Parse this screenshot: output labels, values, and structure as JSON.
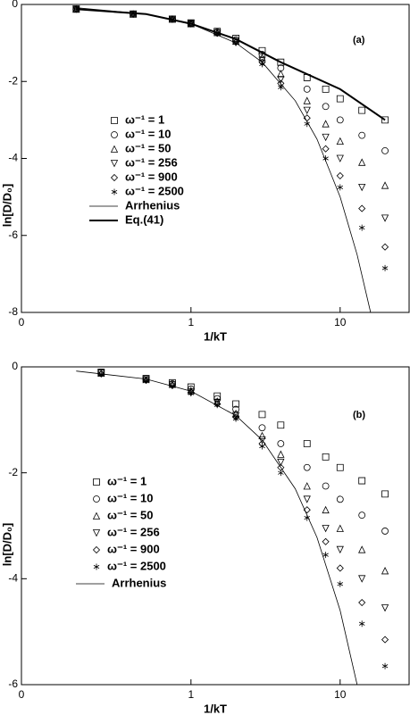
{
  "chart_data": [
    {
      "type": "scatter",
      "panel_label": "(a)",
      "x_label": "1/kT",
      "y_label": "ln[D/D₀]",
      "xscale": "log",
      "xlim": [
        0.073,
        29
      ],
      "xticks": [
        {
          "value": 0.073,
          "label": "0"
        },
        1,
        10
      ],
      "ylim": [
        -8,
        0
      ],
      "yticks": [
        -8,
        -6,
        -4,
        -2,
        0
      ],
      "series": [
        {
          "name": "ω⁻¹ = 1",
          "marker": "square",
          "color": "#000000",
          "x": [
            0.17,
            0.41,
            0.75,
            1,
            1.5,
            2,
            3,
            4,
            6,
            8,
            10,
            14,
            20
          ],
          "values": [
            -0.12,
            -0.25,
            -0.38,
            -0.48,
            -0.7,
            -0.88,
            -1.2,
            -1.5,
            -1.9,
            -2.2,
            -2.45,
            -2.75,
            -3.0
          ]
        },
        {
          "name": "ω⁻¹ = 10",
          "marker": "circle",
          "color": "#000000",
          "x": [
            0.17,
            0.41,
            0.75,
            1,
            1.5,
            2,
            3,
            4,
            6,
            8,
            10,
            14,
            20
          ],
          "values": [
            -0.12,
            -0.25,
            -0.38,
            -0.5,
            -0.72,
            -0.92,
            -1.3,
            -1.65,
            -2.2,
            -2.65,
            -3.0,
            -3.4,
            -3.8
          ]
        },
        {
          "name": "ω⁻¹ = 50",
          "marker": "triangle-up",
          "color": "#000000",
          "x": [
            0.17,
            0.41,
            0.75,
            1,
            1.5,
            2,
            3,
            4,
            6,
            8,
            10,
            14,
            20
          ],
          "values": [
            -0.12,
            -0.25,
            -0.38,
            -0.5,
            -0.73,
            -0.95,
            -1.38,
            -1.8,
            -2.5,
            -3.1,
            -3.55,
            -4.1,
            -4.7
          ]
        },
        {
          "name": "ω⁻¹ = 256",
          "marker": "triangle-down",
          "color": "#000000",
          "x": [
            0.17,
            0.41,
            0.75,
            1,
            1.5,
            2,
            3,
            4,
            6,
            8,
            10,
            14,
            20
          ],
          "values": [
            -0.12,
            -0.25,
            -0.38,
            -0.5,
            -0.74,
            -0.97,
            -1.45,
            -1.95,
            -2.75,
            -3.45,
            -4.0,
            -4.75,
            -5.55
          ]
        },
        {
          "name": "ω⁻¹ = 900",
          "marker": "diamond",
          "color": "#000000",
          "x": [
            0.17,
            0.41,
            0.75,
            1,
            1.5,
            2,
            3,
            4,
            6,
            8,
            10,
            14,
            20
          ],
          "values": [
            -0.12,
            -0.25,
            -0.38,
            -0.5,
            -0.75,
            -0.98,
            -1.5,
            -2.05,
            -2.95,
            -3.75,
            -4.45,
            -5.3,
            -6.3
          ]
        },
        {
          "name": "ω⁻¹ = 2500",
          "marker": "asterisk",
          "color": "#000000",
          "x": [
            0.17,
            0.41,
            0.75,
            1,
            1.5,
            2,
            3,
            4,
            6,
            8,
            10,
            14,
            20
          ],
          "values": [
            -0.12,
            -0.25,
            -0.38,
            -0.5,
            -0.75,
            -1.0,
            -1.55,
            -2.15,
            -3.1,
            -4.0,
            -4.75,
            -5.8,
            -6.85
          ]
        },
        {
          "name": "Arrhenius",
          "line_width": 0.8,
          "color": "#000000",
          "x": [
            0.17,
            0.5,
            1,
            2,
            3,
            5,
            7,
            10,
            13,
            16
          ],
          "values": [
            -0.085,
            -0.25,
            -0.5,
            -1,
            -1.5,
            -2.5,
            -3.5,
            -5,
            -6.5,
            -8
          ]
        },
        {
          "name": "Eq.(41)",
          "line_width": 2,
          "color": "#000000",
          "x": [
            0.17,
            0.5,
            1,
            2,
            4,
            10,
            20
          ],
          "values": [
            -0.12,
            -0.25,
            -0.5,
            -0.9,
            -1.5,
            -2.2,
            -3.0
          ]
        }
      ]
    },
    {
      "type": "scatter",
      "panel_label": "(b)",
      "x_label": "1/kT",
      "y_label": "ln[D/D₀]",
      "xscale": "log",
      "xlim": [
        0.073,
        29
      ],
      "xticks": [
        {
          "value": 0.073,
          "label": "0"
        },
        1,
        10
      ],
      "ylim": [
        -6,
        0
      ],
      "yticks": [
        -6,
        -4,
        -2,
        0
      ],
      "series": [
        {
          "name": "ω⁻¹ = 1",
          "marker": "square",
          "color": "#000000",
          "x": [
            0.25,
            0.5,
            0.75,
            1,
            1.5,
            2,
            3,
            4,
            6,
            8,
            10,
            14,
            20
          ],
          "values": [
            -0.1,
            -0.22,
            -0.3,
            -0.38,
            -0.55,
            -0.7,
            -0.9,
            -1.1,
            -1.45,
            -1.7,
            -1.9,
            -2.15,
            -2.4
          ]
        },
        {
          "name": "ω⁻¹ = 10",
          "marker": "circle",
          "color": "#000000",
          "x": [
            0.25,
            0.5,
            0.75,
            1,
            1.5,
            2,
            3,
            4,
            6,
            8,
            10,
            14,
            20
          ],
          "values": [
            -0.1,
            -0.22,
            -0.32,
            -0.42,
            -0.6,
            -0.8,
            -1.15,
            -1.45,
            -1.9,
            -2.25,
            -2.5,
            -2.8,
            -3.1
          ]
        },
        {
          "name": "ω⁻¹ = 50",
          "marker": "triangle-up",
          "color": "#000000",
          "x": [
            0.25,
            0.5,
            0.75,
            1,
            1.5,
            2,
            3,
            4,
            6,
            8,
            10,
            14,
            20
          ],
          "values": [
            -0.12,
            -0.24,
            -0.33,
            -0.45,
            -0.65,
            -0.88,
            -1.3,
            -1.65,
            -2.25,
            -2.7,
            -3.05,
            -3.45,
            -3.85
          ]
        },
        {
          "name": "ω⁻¹ = 256",
          "marker": "triangle-down",
          "color": "#000000",
          "x": [
            0.25,
            0.5,
            0.75,
            1,
            1.5,
            2,
            3,
            4,
            6,
            8,
            10,
            14,
            20
          ],
          "values": [
            -0.12,
            -0.25,
            -0.34,
            -0.47,
            -0.68,
            -0.92,
            -1.38,
            -1.8,
            -2.5,
            -3.05,
            -3.45,
            -4.0,
            -4.55
          ]
        },
        {
          "name": "ω⁻¹ = 900",
          "marker": "diamond",
          "color": "#000000",
          "x": [
            0.25,
            0.5,
            0.75,
            1,
            1.5,
            2,
            3,
            4,
            6,
            8,
            10,
            14,
            20
          ],
          "values": [
            -0.13,
            -0.25,
            -0.35,
            -0.48,
            -0.7,
            -0.95,
            -1.45,
            -1.9,
            -2.7,
            -3.3,
            -3.8,
            -4.45,
            -5.15
          ]
        },
        {
          "name": "ω⁻¹ = 2500",
          "marker": "asterisk",
          "color": "#000000",
          "x": [
            0.25,
            0.5,
            0.75,
            1,
            1.5,
            2,
            3,
            4,
            6,
            8,
            10,
            14,
            20
          ],
          "values": [
            -0.14,
            -0.26,
            -0.36,
            -0.5,
            -0.72,
            -0.98,
            -1.5,
            -2.0,
            -2.85,
            -3.55,
            -4.1,
            -4.85,
            -5.65
          ]
        },
        {
          "name": "Arrhenius",
          "line_width": 0.8,
          "color": "#000000",
          "x": [
            0.17,
            0.5,
            1,
            2,
            3,
            5,
            7,
            10,
            13
          ],
          "values": [
            -0.08,
            -0.23,
            -0.46,
            -0.92,
            -1.38,
            -2.3,
            -3.22,
            -4.6,
            -6.0
          ]
        }
      ]
    }
  ]
}
